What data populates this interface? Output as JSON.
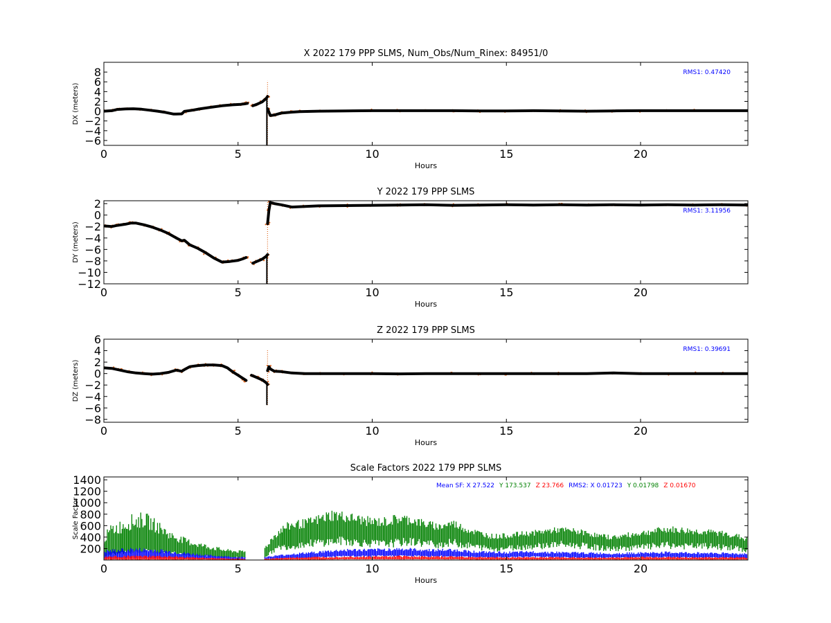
{
  "colors": {
    "residual_line": "#000000",
    "raw_points": "#e0671e",
    "rms_text": "#0000ff",
    "sf_x": "#0000ff",
    "sf_y": "#008000",
    "sf_z": "#ff0000"
  },
  "chart_data": [
    {
      "type": "scatter",
      "title": "X 2022 179 PPP  SLMS, Num_Obs/Num_Rinex: 84951/0",
      "xlabel": "Hours",
      "ylabel": "DX (meters)",
      "xlim": [
        0,
        24
      ],
      "ylim": [
        -7,
        10
      ],
      "xticks": [
        0,
        5,
        10,
        15,
        20
      ],
      "yticks": [
        -6,
        -4,
        -2,
        0,
        2,
        4,
        6,
        8
      ],
      "annotation": "RMS1:  0.47420",
      "series": [
        {
          "x": [
            0,
            0.3,
            0.5,
            0.8,
            1.1,
            1.4,
            1.7,
            2.0,
            2.3,
            2.6,
            2.9,
            3.0,
            3.3,
            3.6,
            4.0,
            4.4,
            4.8,
            5.1,
            5.25,
            5.35,
            5.45,
            5.55,
            5.7,
            5.9,
            6.05,
            6.1
          ],
          "y": [
            0,
            0.1,
            0.35,
            0.45,
            0.5,
            0.4,
            0.2,
            0,
            -0.25,
            -0.6,
            -0.55,
            -0.05,
            0.2,
            0.5,
            0.8,
            1.1,
            1.3,
            1.4,
            1.5,
            1.6,
            null,
            1.1,
            1.4,
            1.9,
            2.6,
            3.0
          ]
        },
        {
          "x": [
            6.1,
            6.2,
            6.35,
            6.6,
            7.0,
            7.3,
            8,
            9,
            10,
            11,
            12,
            13,
            14,
            15,
            16,
            17,
            18,
            19,
            20,
            21,
            22,
            23,
            24
          ],
          "y": [
            0.5,
            -0.9,
            -0.8,
            -0.4,
            -0.2,
            -0.1,
            0,
            0.05,
            0.1,
            0.1,
            0.1,
            0.1,
            0.05,
            0.05,
            0.1,
            0.05,
            0,
            0.05,
            0.1,
            0.1,
            0.1,
            0.1,
            0.1
          ]
        }
      ],
      "spike": {
        "x": 6.1,
        "ymin": -7,
        "ymax": 6.2
      }
    },
    {
      "type": "scatter",
      "title": "Y 2022 179 PPP  SLMS",
      "xlabel": "Hours",
      "ylabel": "DY (meters)",
      "xlim": [
        0,
        24
      ],
      "ylim": [
        -12,
        2.5
      ],
      "xticks": [
        0,
        5,
        10,
        15,
        20
      ],
      "yticks": [
        -12,
        -10,
        -8,
        -6,
        -4,
        -2,
        0,
        2
      ],
      "annotation": "RMS1:  3.11956",
      "series": [
        {
          "x": [
            0,
            0.3,
            0.5,
            0.8,
            1.0,
            1.2,
            1.5,
            1.8,
            2.1,
            2.4,
            2.7,
            2.9,
            3.0,
            3.2,
            3.5,
            3.8,
            4.1,
            4.4,
            4.7,
            5.0,
            5.2,
            5.3,
            5.4,
            5.55,
            5.7,
            5.9,
            6.05,
            6.1
          ],
          "y": [
            -1.9,
            -2.0,
            -1.8,
            -1.6,
            -1.4,
            -1.4,
            -1.7,
            -2.1,
            -2.6,
            -3.2,
            -4.0,
            -4.5,
            -4.4,
            -5.2,
            -5.8,
            -6.6,
            -7.5,
            -8.2,
            -8.1,
            -7.9,
            -7.6,
            -7.4,
            null,
            -8.4,
            -8.1,
            -7.7,
            -7.2,
            -6.9
          ]
        },
        {
          "x": [
            6.1,
            6.15,
            6.2,
            6.35,
            6.6,
            7.0,
            7.5,
            8,
            9,
            10,
            11,
            12,
            13,
            14,
            15,
            16,
            17,
            18,
            19,
            20,
            21,
            22,
            23,
            24
          ],
          "y": [
            -1.5,
            0.8,
            2.2,
            2.0,
            1.8,
            1.4,
            1.5,
            1.6,
            1.65,
            1.7,
            1.75,
            1.8,
            1.7,
            1.75,
            1.8,
            1.75,
            1.8,
            1.75,
            1.8,
            1.75,
            1.8,
            1.75,
            1.8,
            1.75
          ]
        }
      ],
      "spike": {
        "x": 6.1,
        "ymin": -12,
        "ymax": 2.5
      }
    },
    {
      "type": "scatter",
      "title": "Z 2022 179 PPP  SLMS",
      "xlabel": "Hours",
      "ylabel": "DZ (meters)",
      "xlim": [
        0,
        24
      ],
      "ylim": [
        -8.5,
        6
      ],
      "xticks": [
        0,
        5,
        10,
        15,
        20
      ],
      "yticks": [
        -8,
        -6,
        -4,
        -2,
        0,
        2,
        4,
        6
      ],
      "annotation": "RMS1:  0.39691",
      "series": [
        {
          "x": [
            0,
            0.3,
            0.6,
            0.9,
            1.2,
            1.5,
            1.8,
            2.1,
            2.4,
            2.7,
            2.9,
            3.0,
            3.2,
            3.5,
            3.8,
            4.1,
            4.4,
            4.6,
            4.8,
            5.0,
            5.2,
            5.3,
            5.4,
            5.5,
            5.7,
            5.9,
            6.05,
            6.1
          ],
          "y": [
            1.0,
            0.9,
            0.6,
            0.3,
            0.1,
            0,
            -0.1,
            0,
            0.2,
            0.6,
            0.4,
            0.7,
            1.2,
            1.4,
            1.5,
            1.5,
            1.4,
            1.0,
            0.3,
            -0.3,
            -0.9,
            -1.2,
            null,
            -0.3,
            -0.7,
            -1.1,
            -1.6,
            -1.9
          ]
        },
        {
          "x": [
            6.1,
            6.15,
            6.2,
            6.35,
            6.6,
            7.0,
            7.5,
            8,
            9,
            10,
            11,
            12,
            13,
            14,
            15,
            16,
            17,
            18,
            19,
            20,
            21,
            22,
            23,
            24
          ],
          "y": [
            0.5,
            1.2,
            0.8,
            0.4,
            0.35,
            0.1,
            0,
            0,
            0,
            0,
            -0.05,
            0,
            0,
            0,
            0,
            0,
            0,
            0,
            0.1,
            0,
            0,
            0,
            0,
            0
          ]
        }
      ],
      "spike": {
        "x": 6.1,
        "ymin": -5.5,
        "ymax": 4.2
      }
    },
    {
      "type": "scatter",
      "title": "Scale Factors 2022 179 PPP  SLMS",
      "xlabel": "Hours",
      "ylabel": "Scale Factor",
      "xlim": [
        0,
        24
      ],
      "ylim": [
        0,
        1450
      ],
      "xticks": [
        0,
        5,
        10,
        15,
        20
      ],
      "yticks": [
        200,
        400,
        600,
        800,
        1000,
        1200,
        1400
      ],
      "legend_text": [
        {
          "text": "Mean SF: X  27.522",
          "color_key": "sf_x"
        },
        {
          "text": "Y 173.537",
          "color_key": "sf_y"
        },
        {
          "text": "Z  23.766",
          "color_key": "sf_z"
        },
        {
          "text": "RMS2: X  0.01723",
          "color_key": "sf_x"
        },
        {
          "text": "Y  0.01798",
          "color_key": "sf_y"
        },
        {
          "text": "Z  0.01670",
          "color_key": "sf_z"
        }
      ],
      "series": [
        {
          "component": "Y",
          "x": [
            0,
            0.3,
            0.6,
            1.0,
            1.5,
            2.0,
            2.5,
            3.0,
            3.5,
            4.0,
            4.5,
            5.0,
            5.3,
            5.5,
            6.0,
            6.3,
            6.6,
            7.0,
            7.5,
            8.0,
            8.5,
            9.0,
            9.5,
            10.0,
            10.5,
            11.0,
            11.5,
            12.0,
            12.5,
            13.0,
            13.5,
            14.0,
            14.5,
            15.0,
            15.5,
            16.0,
            16.5,
            17.0,
            17.5,
            18.0,
            18.5,
            19.0,
            19.5,
            20.0,
            20.5,
            21.0,
            21.5,
            22.0,
            22.5,
            23.0,
            23.5,
            24.0
          ],
          "low": [
            80,
            120,
            150,
            180,
            200,
            180,
            160,
            120,
            90,
            70,
            60,
            60,
            60,
            null,
            60,
            200,
            280,
            300,
            350,
            380,
            400,
            420,
            380,
            360,
            350,
            380,
            400,
            360,
            340,
            380,
            320,
            280,
            240,
            260,
            280,
            300,
            320,
            340,
            320,
            300,
            260,
            240,
            260,
            280,
            300,
            320,
            300,
            300,
            300,
            280,
            260,
            200
          ],
          "high": [
            450,
            650,
            700,
            800,
            850,
            700,
            500,
            400,
            320,
            260,
            200,
            170,
            170,
            null,
            250,
            450,
            600,
            700,
            720,
            800,
            900,
            850,
            800,
            750,
            760,
            820,
            780,
            700,
            650,
            720,
            600,
            520,
            460,
            470,
            500,
            520,
            560,
            580,
            560,
            520,
            460,
            440,
            480,
            520,
            560,
            600,
            580,
            560,
            540,
            520,
            480,
            400
          ]
        },
        {
          "component": "X",
          "x": [
            0,
            1,
            2,
            3,
            4,
            5,
            5.3,
            5.5,
            6.0,
            7,
            8,
            9,
            10,
            11,
            12,
            13,
            14,
            15,
            16,
            17,
            18,
            19,
            20,
            21,
            22,
            23,
            24
          ],
          "low": [
            30,
            40,
            40,
            30,
            20,
            15,
            15,
            null,
            20,
            40,
            60,
            80,
            80,
            90,
            80,
            80,
            60,
            60,
            70,
            60,
            50,
            50,
            60,
            60,
            50,
            50,
            40
          ],
          "high": [
            180,
            220,
            200,
            140,
            90,
            60,
            60,
            null,
            60,
            120,
            160,
            200,
            200,
            220,
            200,
            200,
            160,
            150,
            160,
            150,
            140,
            130,
            140,
            150,
            140,
            140,
            120
          ]
        },
        {
          "component": "Z",
          "x": [
            0,
            1,
            2,
            3,
            4,
            5,
            5.3,
            5.5,
            6.0,
            7,
            8,
            9,
            10,
            11,
            12,
            13,
            14,
            15,
            16,
            17,
            18,
            19,
            20,
            21,
            22,
            23,
            24
          ],
          "low": [
            10,
            10,
            10,
            10,
            10,
            5,
            5,
            null,
            5,
            10,
            10,
            15,
            15,
            15,
            15,
            15,
            10,
            10,
            10,
            10,
            10,
            10,
            10,
            10,
            10,
            10,
            10
          ],
          "high": [
            70,
            80,
            80,
            60,
            40,
            25,
            25,
            null,
            25,
            50,
            60,
            70,
            70,
            80,
            70,
            70,
            60,
            55,
            60,
            55,
            50,
            50,
            60,
            60,
            55,
            55,
            50
          ]
        }
      ]
    }
  ]
}
